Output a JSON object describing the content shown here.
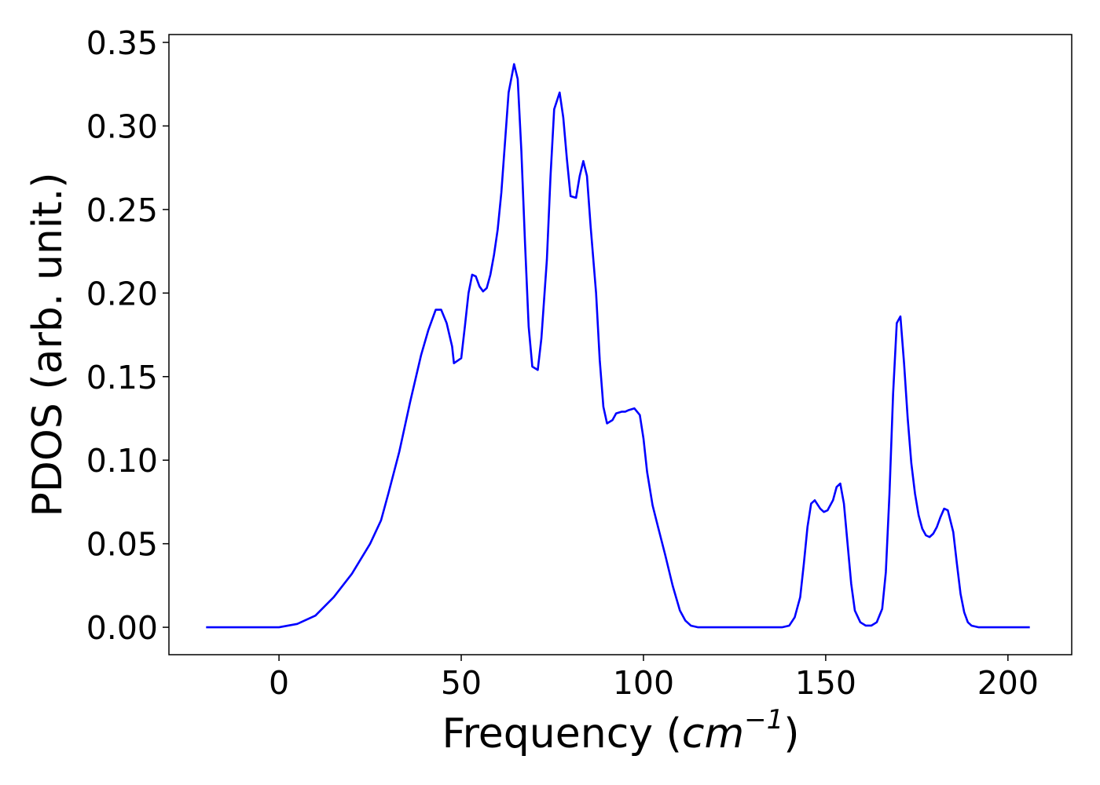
{
  "chart_data": {
    "type": "line",
    "xlabel": {
      "text": "Frequency (",
      "unit": "cm",
      "exponent": "−1",
      "close": ")"
    },
    "ylabel": "PDOS (arb. unit.)",
    "xlim": [
      -30.2,
      217.5
    ],
    "ylim": [
      -0.0164,
      0.3547
    ],
    "xticks": [
      0,
      50,
      100,
      150,
      200
    ],
    "yticks": [
      {
        "value": 0,
        "label": "0.00"
      },
      {
        "value": 0.05,
        "label": "0.05"
      },
      {
        "value": 0.1,
        "label": "0.10"
      },
      {
        "value": 0.15,
        "label": "0.15"
      },
      {
        "value": 0.2,
        "label": "0.20"
      },
      {
        "value": 0.25,
        "label": "0.25"
      },
      {
        "value": 0.3,
        "label": "0.30"
      },
      {
        "value": 0.35,
        "label": "0.35"
      }
    ],
    "grid": false,
    "x": [
      -20,
      0,
      5,
      10,
      15,
      20,
      25,
      28,
      30,
      33,
      36,
      39,
      41,
      43,
      44.5,
      46,
      47.5,
      48,
      50,
      51,
      52,
      53,
      54,
      55,
      56,
      57,
      58,
      59,
      60,
      61,
      62,
      63,
      64.5,
      65.5,
      66.5,
      67.5,
      68.5,
      69.5,
      71,
      72,
      73.5,
      74.5,
      75.5,
      77,
      78,
      79,
      80,
      81.5,
      82.5,
      83.5,
      84.5,
      85.5,
      87,
      88,
      89,
      90,
      91.5,
      92.5,
      94,
      95,
      96,
      97.5,
      99,
      100,
      101,
      102.5,
      104,
      106,
      108,
      110,
      111.5,
      113,
      115,
      138,
      140,
      141.5,
      143,
      144,
      145,
      146,
      147,
      148.5,
      149.5,
      150.5,
      152,
      153,
      154,
      155,
      156,
      157,
      158,
      159.5,
      161,
      162.5,
      164,
      165.5,
      166.5,
      167.5,
      168.5,
      169.5,
      170.5,
      171.5,
      172.5,
      173.5,
      174.5,
      175.5,
      176.5,
      177.5,
      178.5,
      179.5,
      180.5,
      181.5,
      182.5,
      183.5,
      185,
      186,
      187,
      188,
      189,
      190,
      192,
      206
    ],
    "series": [
      {
        "name": "PDOS",
        "color": "#0000ff",
        "values": [
          0,
          0,
          0.002,
          0.007,
          0.018,
          0.032,
          0.05,
          0.064,
          0.08,
          0.105,
          0.135,
          0.163,
          0.178,
          0.19,
          0.19,
          0.182,
          0.168,
          0.158,
          0.161,
          0.18,
          0.2,
          0.211,
          0.21,
          0.204,
          0.201,
          0.203,
          0.211,
          0.223,
          0.238,
          0.26,
          0.29,
          0.32,
          0.337,
          0.328,
          0.285,
          0.23,
          0.18,
          0.156,
          0.154,
          0.173,
          0.22,
          0.27,
          0.31,
          0.32,
          0.305,
          0.28,
          0.258,
          0.257,
          0.27,
          0.279,
          0.27,
          0.24,
          0.2,
          0.16,
          0.132,
          0.122,
          0.124,
          0.128,
          0.129,
          0.129,
          0.13,
          0.131,
          0.127,
          0.113,
          0.093,
          0.073,
          0.06,
          0.043,
          0.025,
          0.01,
          0.004,
          0.001,
          0,
          0,
          0.001,
          0.006,
          0.018,
          0.038,
          0.06,
          0.074,
          0.076,
          0.071,
          0.069,
          0.07,
          0.076,
          0.084,
          0.086,
          0.074,
          0.05,
          0.026,
          0.01,
          0.003,
          0.001,
          0.001,
          0.003,
          0.011,
          0.033,
          0.08,
          0.14,
          0.182,
          0.186,
          0.158,
          0.125,
          0.098,
          0.08,
          0.067,
          0.059,
          0.055,
          0.054,
          0.056,
          0.06,
          0.066,
          0.071,
          0.07,
          0.057,
          0.038,
          0.02,
          0.009,
          0.003,
          0.001,
          0,
          0
        ]
      }
    ]
  }
}
